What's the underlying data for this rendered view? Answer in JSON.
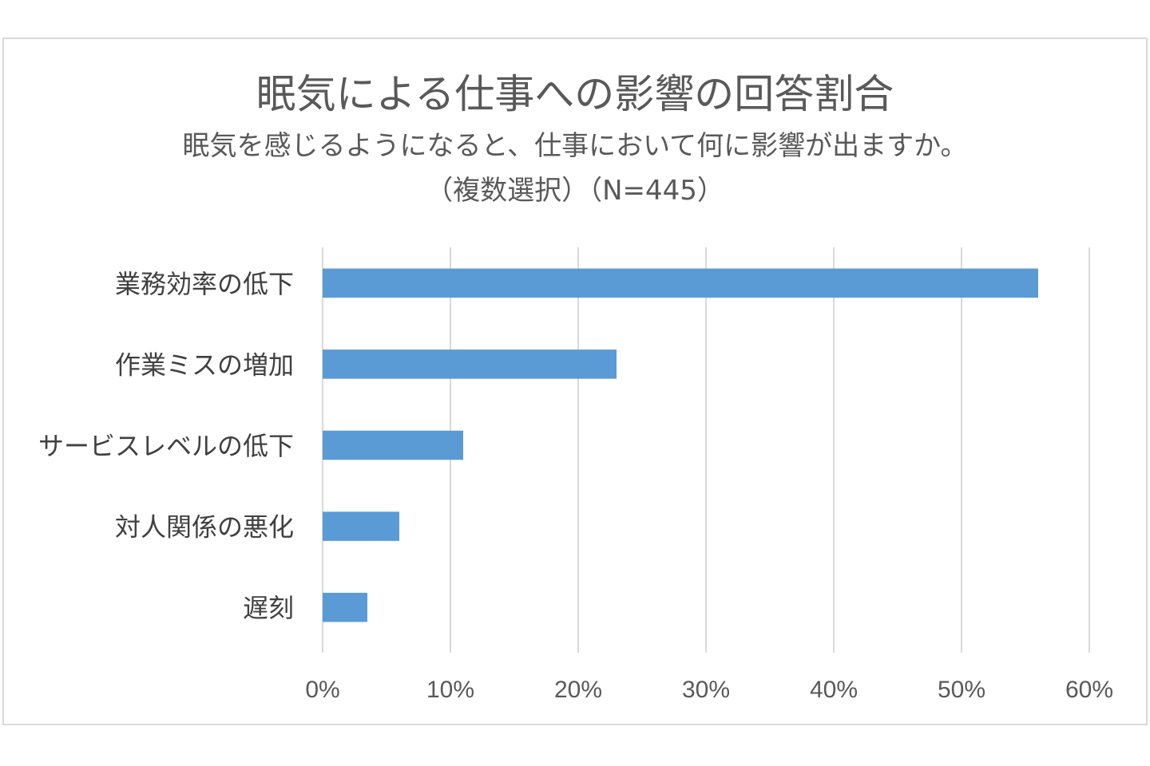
{
  "chart_data": {
    "type": "bar",
    "orientation": "horizontal",
    "title": "眠気による仕事への影響の回答割合",
    "subtitle": "眠気を感じるようになると、仕事において何に影響が出ますか。",
    "subtitle2": "（複数選択）（N=445）",
    "categories": [
      "業務効率の低下",
      "作業ミスの増加",
      "サービスレベルの低下",
      "対人関係の悪化",
      "遅刻"
    ],
    "values": [
      56,
      23,
      11,
      6,
      3.5
    ],
    "x_ticks": [
      "0%",
      "10%",
      "20%",
      "30%",
      "40%",
      "50%",
      "60%"
    ],
    "xlim": [
      0,
      60
    ],
    "grid": true,
    "legend": "none",
    "bar_color": "#5b9bd5",
    "grid_color": "#d9d9d9"
  }
}
